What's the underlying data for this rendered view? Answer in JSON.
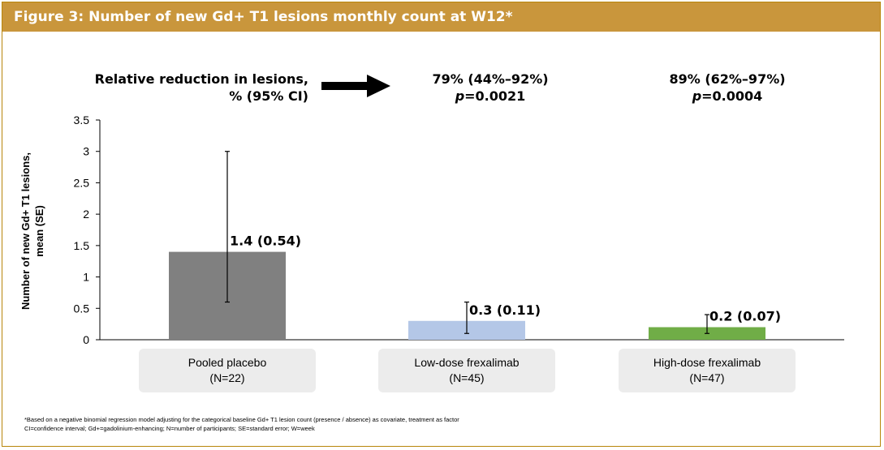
{
  "title": "Figure 3: Number of new Gd+ T1 lesions monthly count at W12*",
  "relative_reduction": {
    "label_line1": "Relative reduction in lesions,",
    "label_line2": "% (95% CI)",
    "groups": [
      {
        "value": "79% (44%–92%)",
        "p_symbol": "p",
        "p_value": "=0.0021"
      },
      {
        "value": "89% (62%–97%)",
        "p_symbol": "p",
        "p_value": "=0.0004"
      }
    ]
  },
  "chart_data": {
    "type": "bar",
    "ylabel_line1": "Number of new Gd+ T1 lesions,",
    "ylabel_line2": "mean (SE)",
    "ylim": [
      0,
      3.5
    ],
    "yticks": [
      "0",
      "0.5",
      "1",
      "1.5",
      "2",
      "2.5",
      "3",
      "3.5"
    ],
    "categories": [
      {
        "name": "Pooled placebo",
        "n": "(N=22)"
      },
      {
        "name": "Low-dose frexalimab",
        "n": "(N=45)"
      },
      {
        "name": "High-dose frexalimab",
        "n": "(N=47)"
      }
    ],
    "values": [
      1.4,
      0.3,
      0.2
    ],
    "error_low": [
      0.6,
      0.1,
      0.1
    ],
    "error_high": [
      3.0,
      0.6,
      0.4
    ],
    "data_labels": [
      "1.4 (0.54)",
      "0.3 (0.11)",
      "0.2 (0.07)"
    ],
    "colors": [
      "#808080",
      "#b4c7e7",
      "#70ad47"
    ]
  },
  "footnote": {
    "line1": "*Based on a negative binomial regression model adjusting for the categorical baseline Gd+ T1 lesion count (presence / absence) as covariate, treatment as factor",
    "line2": "CI=confidence interval; Gd+=gadolinium-enhancing; N=number of participants; SE=standard error; W=week"
  }
}
